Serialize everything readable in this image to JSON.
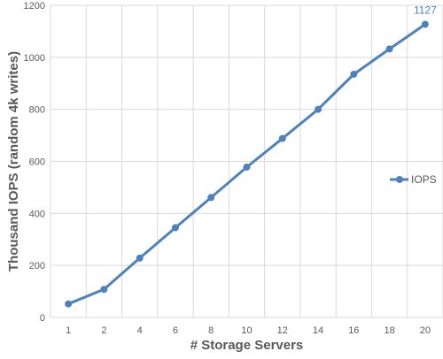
{
  "chart_data": {
    "type": "line",
    "title": "",
    "xlabel": "# Storage Servers",
    "ylabel": "Thousand IOPS (random 4k writes)",
    "categories": [
      "1",
      "2",
      "4",
      "6",
      "8",
      "10",
      "12",
      "14",
      "16",
      "18",
      "20"
    ],
    "series": [
      {
        "name": "IOPS",
        "values": [
          52,
          108,
          228,
          345,
          461,
          578,
          688,
          800,
          935,
          1032,
          1127
        ],
        "color": "#4f81bd"
      }
    ],
    "ylim": [
      0,
      1200
    ],
    "yticks": [
      0,
      200,
      400,
      600,
      800,
      1000,
      1200
    ],
    "grid": true,
    "legend_position": "right",
    "data_labels": [
      {
        "series": 0,
        "index": 10,
        "text": "1127"
      }
    ],
    "colors": {
      "series": "#4f81bd",
      "grid": "#d9d9d9",
      "text": "#595959"
    }
  }
}
